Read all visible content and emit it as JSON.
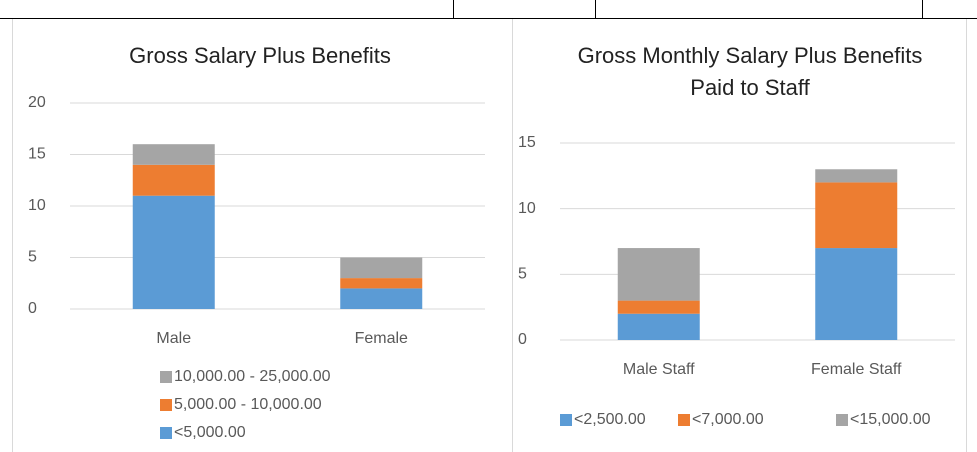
{
  "chart_data": [
    {
      "type": "bar",
      "stacked": true,
      "title": "Gross Salary Plus Benefits",
      "categories": [
        "Male",
        "Female"
      ],
      "series": [
        {
          "name": "<5,000.00",
          "color": "#5b9bd5",
          "values": [
            11,
            2
          ]
        },
        {
          "name": "5,000.00 - 10,000.00",
          "color": "#ed7d31",
          "values": [
            3,
            1
          ]
        },
        {
          "name": "10,000.00 - 25,000.00",
          "color": "#a5a5a5",
          "values": [
            2,
            2
          ]
        }
      ],
      "ylim": [
        0,
        20
      ],
      "yticks": [
        0,
        5,
        10,
        15,
        20
      ],
      "grid": true,
      "legend": "bottom"
    },
    {
      "type": "bar",
      "stacked": true,
      "title": "Gross Monthly Salary Plus Benefits Paid to Staff",
      "categories": [
        "Male Staff",
        "Female Staff"
      ],
      "series": [
        {
          "name": "<2,500.00",
          "color": "#5b9bd5",
          "values": [
            2,
            7
          ]
        },
        {
          "name": "<7,000.00",
          "color": "#ed7d31",
          "values": [
            1,
            5
          ]
        },
        {
          "name": "<15,000.00",
          "color": "#a5a5a5",
          "values": [
            4,
            1
          ]
        }
      ],
      "ylim": [
        0,
        15
      ],
      "yticks": [
        0,
        5,
        10,
        15
      ],
      "grid": true,
      "legend": "bottom"
    }
  ]
}
